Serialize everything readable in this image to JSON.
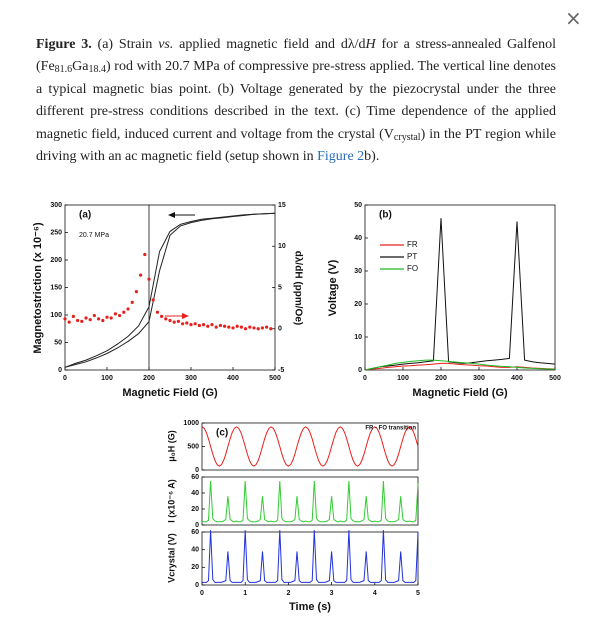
{
  "close_button": "×",
  "caption": {
    "segments": [
      "Figure 3.",
      " (a) Strain ",
      "vs.",
      " applied magnetic field and dλ/d",
      "H",
      " for a stress-annealed Galfenol (Fe",
      "81.6",
      "Ga",
      "18.4",
      ") rod with 20.7 MPa of compressive pre-stress applied. The vertical line denotes a typical magnetic bias point. (b) Voltage generated by the piezocrystal under the three different pre-stress conditions described in the text. (c) Time dependence of the applied magnetic field, induced current and voltage from the crystal (V",
      "crystal",
      ") in the PT region while driving with an ac magnetic field (setup shown in ",
      "Figure 2",
      "b)."
    ]
  },
  "chart_data": [
    {
      "type": "line",
      "panel_label": "(a)",
      "note": "20.7 MPa",
      "xlabel": "Magnetic Field (G)",
      "ylabel": "Magnetostriction (x 10⁻⁶)",
      "y2label": "dλ/dH (ppm/Oe)",
      "xlim": [
        0,
        500
      ],
      "xticks": [
        0,
        100,
        200,
        300,
        400,
        500
      ],
      "ylim": [
        0,
        300
      ],
      "yticks": [
        0,
        50,
        100,
        150,
        200,
        250,
        300
      ],
      "y2lim": [
        -5,
        15
      ],
      "y2ticks": [
        -5,
        0,
        5,
        10,
        15
      ],
      "vline": 200,
      "x": [
        0,
        25,
        50,
        75,
        100,
        125,
        150,
        175,
        200,
        225,
        250,
        275,
        300,
        325,
        350,
        375,
        400,
        425,
        450,
        475,
        500
      ],
      "series": [
        {
          "color": "#222222",
          "values": [
            5,
            10,
            15,
            22,
            30,
            40,
            52,
            66,
            88,
            180,
            245,
            262,
            268,
            272,
            275,
            277,
            279,
            281,
            283,
            284,
            285
          ]
        },
        {
          "color": "#222222",
          "values": [
            5,
            12,
            18,
            26,
            35,
            47,
            61,
            80,
            115,
            215,
            252,
            265,
            270,
            274,
            276,
            278,
            280,
            282,
            283,
            284,
            285
          ]
        },
        {
          "type": "scatter",
          "axis": "y2",
          "color": "#e8201c",
          "x": [
            0,
            10,
            20,
            30,
            40,
            50,
            60,
            70,
            80,
            90,
            100,
            110,
            120,
            130,
            140,
            150,
            160,
            170,
            180,
            190,
            200,
            210,
            220,
            230,
            240,
            250,
            260,
            270,
            280,
            290,
            300,
            310,
            320,
            330,
            340,
            350,
            360,
            370,
            380,
            390,
            400,
            410,
            420,
            430,
            440,
            450,
            460,
            470,
            480,
            490
          ],
          "values": [
            1.2,
            0.8,
            1.5,
            1.0,
            0.9,
            1.3,
            1.1,
            1.6,
            1.2,
            1.0,
            1.4,
            1.3,
            1.8,
            1.6,
            2.0,
            2.4,
            3.2,
            4.5,
            6.5,
            9.0,
            6.0,
            3.5,
            2.0,
            1.5,
            1.2,
            1.0,
            0.8,
            0.9,
            0.6,
            0.7,
            0.5,
            0.6,
            0.4,
            0.5,
            0.3,
            0.5,
            0.2,
            0.4,
            0.3,
            0.2,
            0.1,
            0.3,
            0.2,
            0.0,
            0.2,
            0.1,
            0.0,
            0.1,
            0.2,
            0.0
          ]
        }
      ]
    },
    {
      "type": "line",
      "panel_label": "(b)",
      "xlabel": "Magnetic Field (G)",
      "ylabel": "Voltage (V)",
      "legend": "center",
      "xlim": [
        0,
        500
      ],
      "xticks": [
        0,
        100,
        200,
        300,
        400,
        500
      ],
      "ylim": [
        0,
        50
      ],
      "yticks": [
        0,
        10,
        20,
        30,
        40,
        50
      ],
      "x": [
        0,
        20,
        40,
        60,
        80,
        100,
        120,
        140,
        160,
        180,
        200,
        220,
        240,
        260,
        280,
        300,
        320,
        340,
        360,
        380,
        400,
        420,
        440,
        460,
        480,
        500
      ],
      "series": [
        {
          "name": "FR",
          "color": "#e8201c",
          "values": [
            0,
            0.3,
            0.5,
            0.8,
            1,
            1.2,
            1.3,
            1.5,
            1.6,
            1.8,
            2,
            2,
            1.8,
            1.6,
            1.5,
            1.3,
            1.2,
            1,
            0.8,
            0.8,
            1,
            0.8,
            0.6,
            0.5,
            0.4,
            0.3
          ]
        },
        {
          "name": "PT",
          "color": "#111111",
          "values": [
            0,
            0.5,
            1,
            1.2,
            1.5,
            1.8,
            2,
            2.2,
            2.5,
            2.8,
            46,
            2.5,
            2.2,
            2,
            2.2,
            2.5,
            2.8,
            3,
            3.2,
            3.5,
            45,
            3,
            2.5,
            2.2,
            2,
            1.8
          ]
        },
        {
          "name": "FO",
          "color": "#22bb22",
          "values": [
            0,
            0.5,
            1,
            1.5,
            2,
            2.3,
            2.6,
            2.8,
            3,
            3,
            2.8,
            2.6,
            2.4,
            2.2,
            2,
            1.8,
            1.5,
            1.3,
            1.1,
            1,
            0.8,
            0.6,
            0.5,
            0.4,
            0.3,
            0.2
          ]
        }
      ]
    },
    {
      "type": "line",
      "panel_label": "(c)",
      "note": "FR - FO transition",
      "ylabel": "μ₀H (G)",
      "xlim": [
        0,
        5
      ],
      "ylim": [
        0,
        1000
      ],
      "yticks": [
        0,
        500,
        1000
      ],
      "x": [
        0,
        0.05,
        0.1,
        0.15,
        0.2,
        0.25,
        0.3,
        0.35,
        0.4,
        0.45,
        0.5,
        0.55,
        0.6,
        0.65,
        0.7,
        0.75,
        0.8,
        0.85,
        0.9,
        0.95,
        1,
        1.05,
        1.1,
        1.15,
        1.2,
        1.25,
        1.3,
        1.35,
        1.4,
        1.45,
        1.5,
        1.55,
        1.6,
        1.65,
        1.7,
        1.75,
        1.8,
        1.85,
        1.9,
        1.95,
        2,
        2.05,
        2.1,
        2.15,
        2.2,
        2.25,
        2.3,
        2.35,
        2.4,
        2.45,
        2.5,
        2.55,
        2.6,
        2.65,
        2.7,
        2.75,
        2.8,
        2.85,
        2.9,
        2.95,
        3,
        3.05,
        3.1,
        3.15,
        3.2,
        3.25,
        3.3,
        3.35,
        3.4,
        3.45,
        3.5,
        3.55,
        3.6,
        3.65,
        3.7,
        3.75,
        3.8,
        3.85,
        3.9,
        3.95,
        4,
        4.05,
        4.1,
        4.15,
        4.2,
        4.25,
        4.3,
        4.35,
        4.4,
        4.45,
        4.5,
        4.55,
        4.6,
        4.65,
        4.7,
        4.75,
        4.8,
        4.85,
        4.9,
        4.95,
        5
      ],
      "series": [
        {
          "color": "#e8201c",
          "values": [
            920,
            888,
            797,
            661,
            500,
            339,
            203,
            112,
            80,
            112,
            203,
            339,
            500,
            661,
            797,
            888,
            920,
            888,
            797,
            661,
            500,
            339,
            203,
            112,
            80,
            112,
            203,
            339,
            500,
            661,
            797,
            888,
            920,
            888,
            797,
            661,
            500,
            339,
            203,
            112,
            80,
            112,
            203,
            339,
            500,
            661,
            797,
            888,
            920,
            888,
            797,
            661,
            500,
            339,
            203,
            112,
            80,
            112,
            203,
            339,
            500,
            661,
            797,
            888,
            920,
            888,
            797,
            661,
            500,
            339,
            203,
            112,
            80,
            112,
            203,
            339,
            500,
            661,
            797,
            888,
            920,
            888,
            797,
            661,
            500,
            339,
            203,
            112,
            80,
            112,
            203,
            339,
            500,
            661,
            797,
            888,
            920,
            888,
            797,
            661,
            500
          ]
        }
      ]
    },
    {
      "type": "line",
      "ylabel": "I (x10⁻⁶ A)",
      "xlim": [
        0,
        5
      ],
      "ylim": [
        0,
        60
      ],
      "yticks": [
        0,
        20,
        40,
        60
      ],
      "x": [
        0,
        0.05,
        0.1,
        0.15,
        0.2,
        0.25,
        0.3,
        0.35,
        0.4,
        0.45,
        0.5,
        0.55,
        0.6,
        0.65,
        0.7,
        0.75,
        0.8,
        0.85,
        0.9,
        0.95,
        1,
        1.05,
        1.1,
        1.15,
        1.2,
        1.25,
        1.3,
        1.35,
        1.4,
        1.45,
        1.5,
        1.55,
        1.6,
        1.65,
        1.7,
        1.75,
        1.8,
        1.85,
        1.9,
        1.95,
        2,
        2.05,
        2.1,
        2.15,
        2.2,
        2.25,
        2.3,
        2.35,
        2.4,
        2.45,
        2.5,
        2.55,
        2.6,
        2.65,
        2.7,
        2.75,
        2.8,
        2.85,
        2.9,
        2.95,
        3,
        3.05,
        3.1,
        3.15,
        3.2,
        3.25,
        3.3,
        3.35,
        3.4,
        3.45,
        3.5,
        3.55,
        3.6,
        3.65,
        3.7,
        3.75,
        3.8,
        3.85,
        3.9,
        3.95,
        4,
        4.05,
        4.1,
        4.15,
        4.2,
        4.25,
        4.3,
        4.35,
        4.4,
        4.45,
        4.5,
        4.55,
        4.6,
        4.65,
        4.7,
        4.75,
        4.8,
        4.85,
        4.9,
        4.95,
        5
      ],
      "series": [
        {
          "color": "#33cc33",
          "values": [
            5,
            4,
            4,
            6,
            55,
            8,
            5,
            4,
            4,
            4,
            5,
            7,
            36,
            7,
            5,
            4,
            5,
            4,
            4,
            6,
            55,
            8,
            5,
            4,
            4,
            4,
            5,
            7,
            36,
            7,
            5,
            4,
            5,
            4,
            4,
            6,
            55,
            8,
            5,
            4,
            4,
            4,
            5,
            7,
            36,
            7,
            5,
            4,
            5,
            4,
            4,
            6,
            55,
            8,
            5,
            4,
            4,
            4,
            5,
            7,
            36,
            7,
            5,
            4,
            5,
            4,
            4,
            6,
            55,
            8,
            5,
            4,
            4,
            4,
            5,
            7,
            36,
            7,
            5,
            4,
            5,
            4,
            4,
            6,
            55,
            8,
            5,
            4,
            4,
            4,
            5,
            7,
            36,
            7,
            5,
            4,
            5,
            4,
            4,
            6,
            52
          ]
        }
      ]
    },
    {
      "type": "line",
      "ylabel": "Vcrystal (V)",
      "xlabel": "Time (s)",
      "xlim": [
        0,
        5
      ],
      "xticks": [
        0,
        1,
        2,
        3,
        4,
        5
      ],
      "ylim": [
        0,
        60
      ],
      "yticks": [
        0,
        20,
        40,
        60
      ],
      "x": [
        0,
        0.05,
        0.1,
        0.15,
        0.2,
        0.25,
        0.3,
        0.35,
        0.4,
        0.45,
        0.5,
        0.55,
        0.6,
        0.65,
        0.7,
        0.75,
        0.8,
        0.85,
        0.9,
        0.95,
        1,
        1.05,
        1.1,
        1.15,
        1.2,
        1.25,
        1.3,
        1.35,
        1.4,
        1.45,
        1.5,
        1.55,
        1.6,
        1.65,
        1.7,
        1.75,
        1.8,
        1.85,
        1.9,
        1.95,
        2,
        2.05,
        2.1,
        2.15,
        2.2,
        2.25,
        2.3,
        2.35,
        2.4,
        2.45,
        2.5,
        2.55,
        2.6,
        2.65,
        2.7,
        2.75,
        2.8,
        2.85,
        2.9,
        2.95,
        3,
        3.05,
        3.1,
        3.15,
        3.2,
        3.25,
        3.3,
        3.35,
        3.4,
        3.45,
        3.5,
        3.55,
        3.6,
        3.65,
        3.7,
        3.75,
        3.8,
        3.85,
        3.9,
        3.95,
        4,
        4.05,
        4.1,
        4.15,
        4.2,
        4.25,
        4.3,
        4.35,
        4.4,
        4.45,
        4.5,
        4.55,
        4.6,
        4.65,
        4.7,
        4.75,
        4.8,
        4.85,
        4.9,
        4.95,
        5
      ],
      "series": [
        {
          "color": "#2233dd",
          "values": [
            3,
            3,
            3,
            5,
            62,
            6,
            3,
            3,
            3,
            3,
            4,
            5,
            38,
            5,
            3,
            3,
            3,
            3,
            3,
            5,
            62,
            6,
            3,
            3,
            3,
            3,
            4,
            5,
            38,
            5,
            3,
            3,
            3,
            3,
            3,
            5,
            62,
            6,
            3,
            3,
            3,
            3,
            4,
            5,
            38,
            5,
            3,
            3,
            3,
            3,
            3,
            5,
            62,
            6,
            3,
            3,
            3,
            3,
            4,
            5,
            38,
            5,
            3,
            3,
            3,
            3,
            3,
            5,
            62,
            6,
            3,
            3,
            3,
            3,
            4,
            5,
            38,
            5,
            3,
            3,
            3,
            3,
            3,
            5,
            62,
            6,
            3,
            3,
            3,
            3,
            4,
            5,
            38,
            5,
            3,
            3,
            3,
            3,
            3,
            5,
            60
          ]
        }
      ]
    }
  ]
}
